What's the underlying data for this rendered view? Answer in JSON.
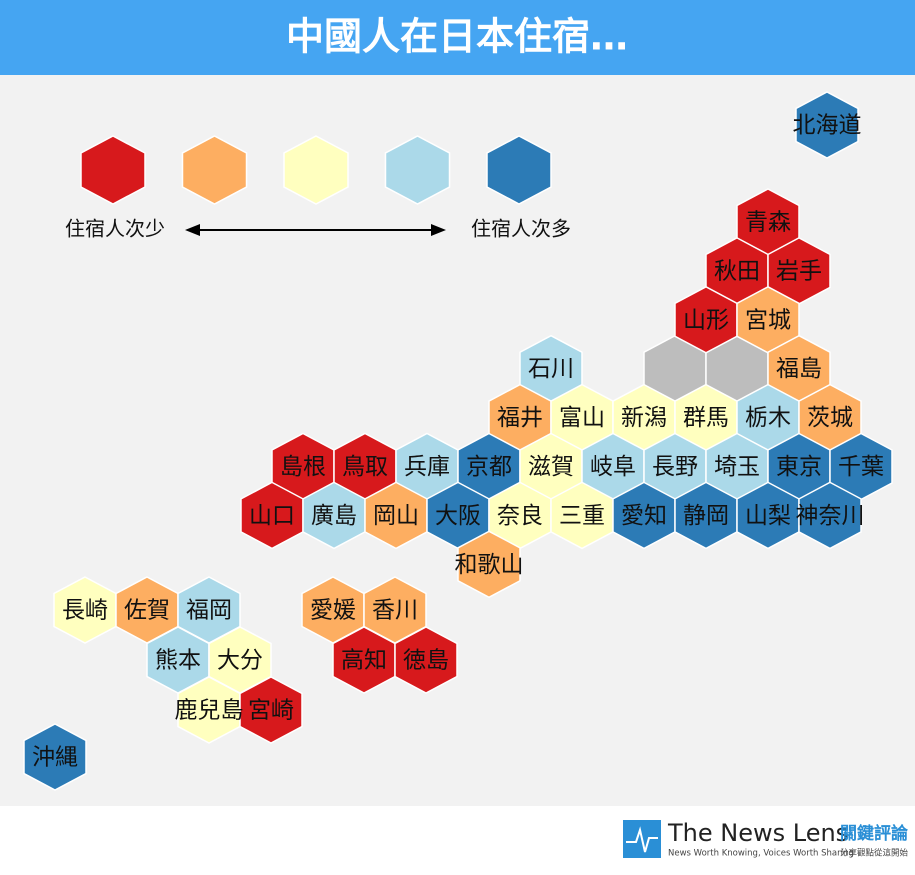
{
  "header": {
    "title": "中國人在日本住宿…"
  },
  "legend": {
    "low": "住宿人次少",
    "high": "住宿人次多",
    "colors": [
      "#d7191c",
      "#fdae61",
      "#ffffbf",
      "#abd9e9",
      "#2c7bb6"
    ]
  },
  "prefectures": [
    {
      "name": "北海道",
      "color": "#2c7bb6"
    },
    {
      "name": "青森",
      "color": "#d7191c"
    },
    {
      "name": "秋田",
      "color": "#d7191c"
    },
    {
      "name": "岩手",
      "color": "#d7191c"
    },
    {
      "name": "山形",
      "color": "#d7191c"
    },
    {
      "name": "宮城",
      "color": "#fdae61"
    },
    {
      "name": "石川",
      "color": "#abd9e9"
    },
    {
      "name": "福島",
      "color": "#fdae61"
    },
    {
      "name": "福井",
      "color": "#fdae61"
    },
    {
      "name": "富山",
      "color": "#ffffbf"
    },
    {
      "name": "新潟",
      "color": "#ffffbf"
    },
    {
      "name": "群馬",
      "color": "#ffffbf"
    },
    {
      "name": "栃木",
      "color": "#abd9e9"
    },
    {
      "name": "茨城",
      "color": "#fdae61"
    },
    {
      "name": "島根",
      "color": "#d7191c"
    },
    {
      "name": "鳥取",
      "color": "#d7191c"
    },
    {
      "name": "兵庫",
      "color": "#abd9e9"
    },
    {
      "name": "京都",
      "color": "#2c7bb6"
    },
    {
      "name": "滋賀",
      "color": "#ffffbf"
    },
    {
      "name": "岐阜",
      "color": "#abd9e9"
    },
    {
      "name": "長野",
      "color": "#abd9e9"
    },
    {
      "name": "埼玉",
      "color": "#abd9e9"
    },
    {
      "name": "東京",
      "color": "#2c7bb6"
    },
    {
      "name": "千葉",
      "color": "#2c7bb6"
    },
    {
      "name": "山口",
      "color": "#d7191c"
    },
    {
      "name": "廣島",
      "color": "#abd9e9"
    },
    {
      "name": "岡山",
      "color": "#fdae61"
    },
    {
      "name": "大阪",
      "color": "#2c7bb6"
    },
    {
      "name": "奈良",
      "color": "#ffffbf"
    },
    {
      "name": "三重",
      "color": "#ffffbf"
    },
    {
      "name": "愛知",
      "color": "#2c7bb6"
    },
    {
      "name": "静岡",
      "color": "#2c7bb6"
    },
    {
      "name": "山梨",
      "color": "#2c7bb6"
    },
    {
      "name": "神奈川",
      "color": "#2c7bb6"
    },
    {
      "name": "和歌山",
      "color": "#fdae61"
    },
    {
      "name": "長崎",
      "color": "#ffffbf"
    },
    {
      "name": "佐賀",
      "color": "#fdae61"
    },
    {
      "name": "福岡",
      "color": "#abd9e9"
    },
    {
      "name": "熊本",
      "color": "#abd9e9"
    },
    {
      "name": "大分",
      "color": "#ffffbf"
    },
    {
      "name": "鹿兒島",
      "color": "#ffffbf"
    },
    {
      "name": "宮崎",
      "color": "#d7191c"
    },
    {
      "name": "愛媛",
      "color": "#fdae61"
    },
    {
      "name": "香川",
      "color": "#fdae61"
    },
    {
      "name": "高知",
      "color": "#d7191c"
    },
    {
      "name": "徳島",
      "color": "#d7191c"
    },
    {
      "name": "沖縄",
      "color": "#2c7bb6"
    }
  ],
  "footer": {
    "brand": "The News Lens",
    "tagline": "News Worth Knowing, Voices Worth Sharing",
    "brand_zh": "關鍵評論",
    "tagline_zh": "分享觀點從這開始"
  }
}
